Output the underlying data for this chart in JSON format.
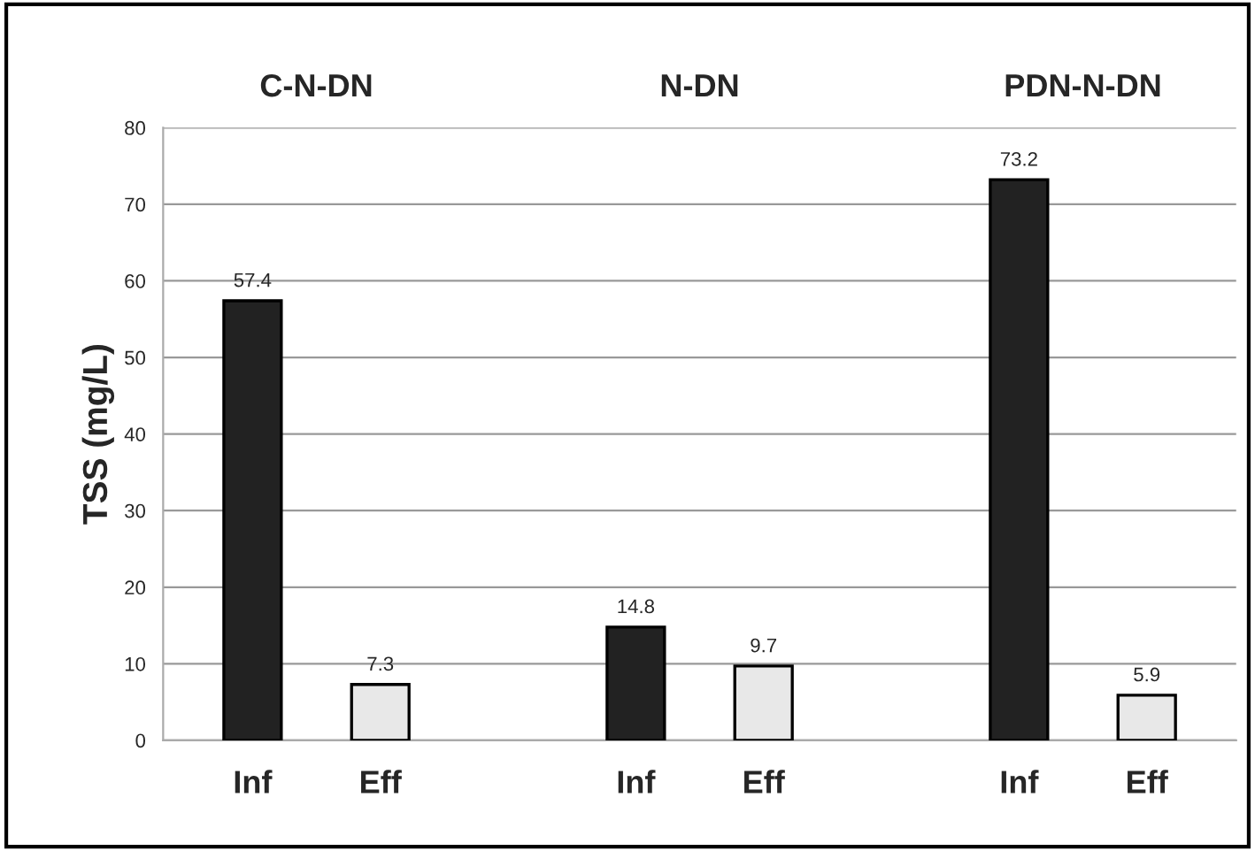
{
  "chart_data": {
    "type": "bar",
    "ylabel": "TSS (mg/L)",
    "annotations": [
      "C-N-DN",
      "N-DN",
      "PDN-N-DN"
    ],
    "categories": [
      "Inf",
      "Eff",
      null,
      "Inf",
      "Eff",
      null,
      "Inf",
      "Eff"
    ],
    "values": [
      57.4,
      7.3,
      null,
      14.8,
      9.7,
      null,
      73.2,
      5.9
    ],
    "colors": [
      "#222222",
      "#e8e8e8",
      null,
      "#222222",
      "#e8e8e8",
      null,
      "#222222",
      "#e8e8e8"
    ],
    "ylim": [
      0,
      80
    ],
    "yticks": [
      0,
      10,
      20,
      30,
      40,
      50,
      60,
      70,
      80
    ],
    "grid": "y",
    "data_labels": true
  }
}
